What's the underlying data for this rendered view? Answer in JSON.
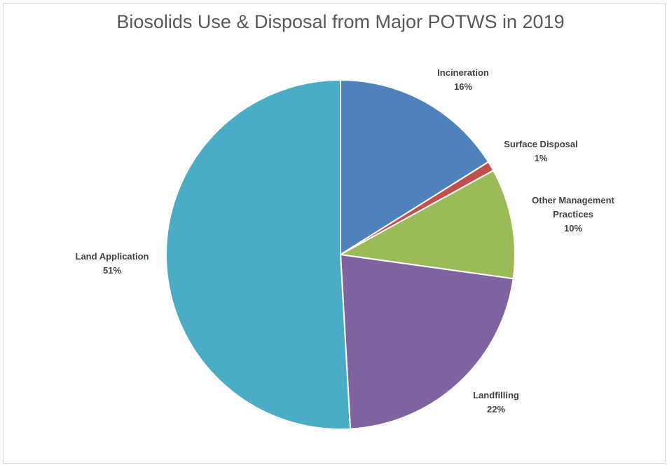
{
  "chart_data": {
    "type": "pie",
    "title": "Biosolids Use & Disposal from Major POTWS in 2019",
    "slices": [
      {
        "name": "Incineration",
        "percent_label": "16%",
        "value": 16.1,
        "color": "#4f81bd",
        "label_lines": [
          "Incineration",
          "16%"
        ]
      },
      {
        "name": "Surface Disposal",
        "percent_label": "1%",
        "value": 0.9,
        "color": "#c0504d",
        "label_lines": [
          "Surface Disposal",
          "1%"
        ]
      },
      {
        "name": "Other Management Practices",
        "percent_label": "10%",
        "value": 10.2,
        "color": "#9bbb59",
        "label_lines": [
          "Other Management",
          "Practices",
          "10%"
        ]
      },
      {
        "name": "Landfilling",
        "percent_label": "22%",
        "value": 21.9,
        "color": "#8064a2",
        "label_lines": [
          "Landfilling",
          "22%"
        ]
      },
      {
        "name": "Land Application",
        "percent_label": "51%",
        "value": 50.9,
        "color": "#4bacc6",
        "label_lines": [
          "Land Application",
          "51%"
        ]
      }
    ],
    "start_angle": "12 o'clock",
    "direction": "clockwise",
    "legend": "none",
    "slice_border_color": "#ffffff"
  }
}
